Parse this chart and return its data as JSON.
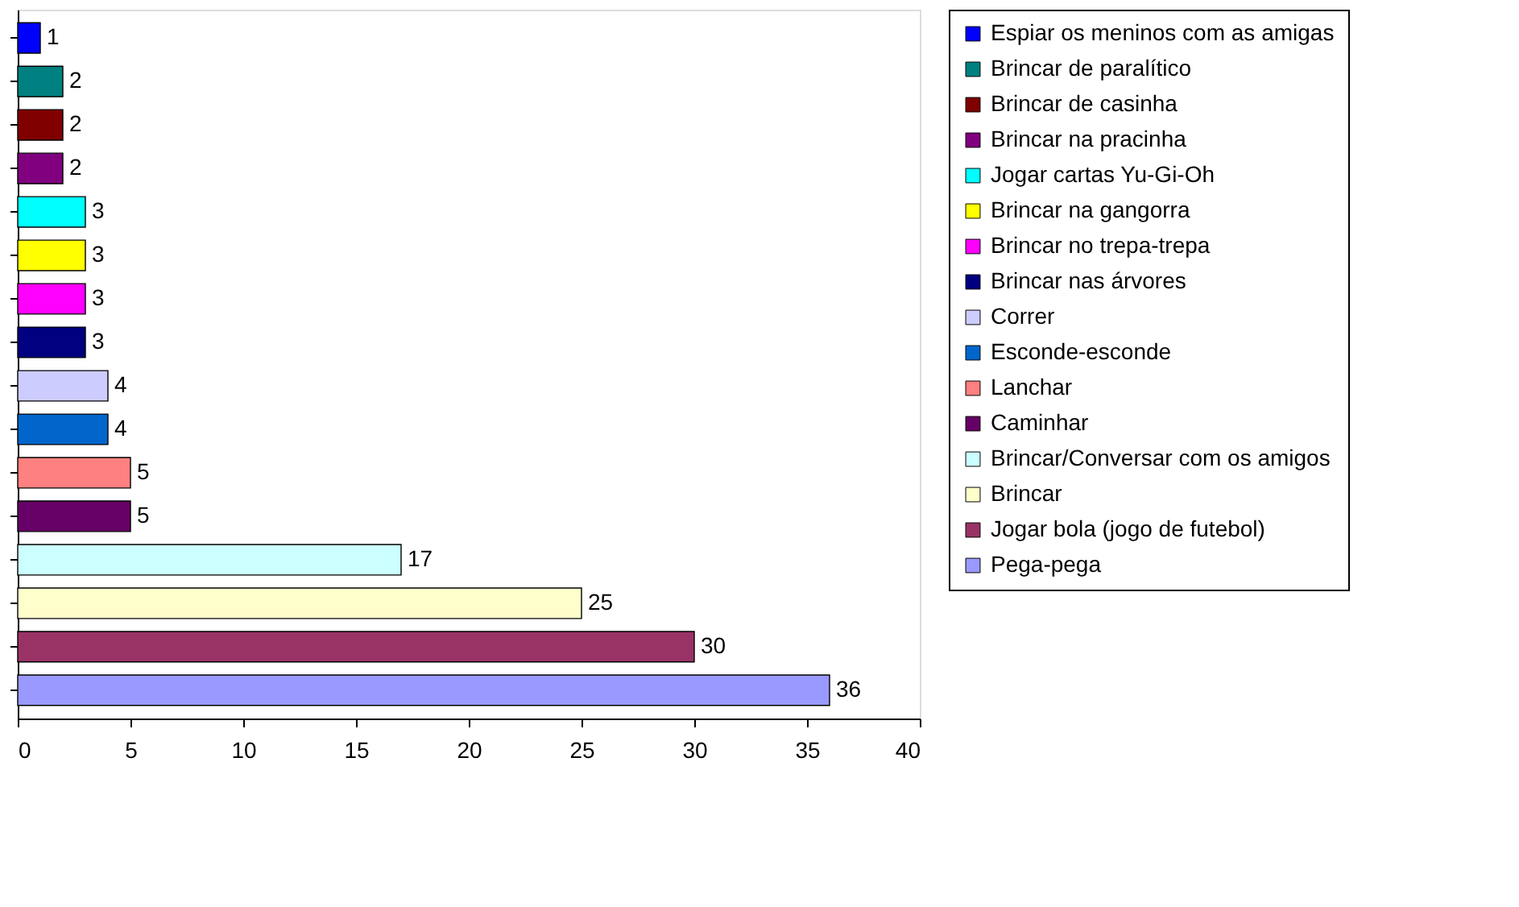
{
  "chart_data": {
    "type": "bar",
    "orientation": "horizontal",
    "categories": [
      null,
      null,
      null,
      null,
      null,
      null,
      null,
      null,
      null,
      null,
      null,
      null,
      null,
      null,
      null,
      null
    ],
    "series": [
      {
        "name": "Espiar os meninos com as amigas",
        "color": "#0000ff",
        "values": [
          1,
          null,
          null,
          null,
          null,
          null,
          null,
          null,
          null,
          null,
          null,
          null,
          null,
          null,
          null,
          null
        ]
      },
      {
        "name": "Brincar de paralítico",
        "color": "#008080",
        "values": [
          null,
          2,
          null,
          null,
          null,
          null,
          null,
          null,
          null,
          null,
          null,
          null,
          null,
          null,
          null,
          null
        ]
      },
      {
        "name": "Brincar de casinha",
        "color": "#800000",
        "values": [
          null,
          null,
          2,
          null,
          null,
          null,
          null,
          null,
          null,
          null,
          null,
          null,
          null,
          null,
          null,
          null
        ]
      },
      {
        "name": "Brincar na pracinha",
        "color": "#800080",
        "values": [
          null,
          null,
          null,
          2,
          null,
          null,
          null,
          null,
          null,
          null,
          null,
          null,
          null,
          null,
          null,
          null
        ]
      },
      {
        "name": "Jogar cartas Yu-Gi-Oh",
        "color": "#00ffff",
        "values": [
          null,
          null,
          null,
          null,
          3,
          null,
          null,
          null,
          null,
          null,
          null,
          null,
          null,
          null,
          null,
          null
        ]
      },
      {
        "name": "Brincar na gangorra",
        "color": "#ffff00",
        "values": [
          null,
          null,
          null,
          null,
          null,
          3,
          null,
          null,
          null,
          null,
          null,
          null,
          null,
          null,
          null,
          null
        ]
      },
      {
        "name": "Brincar no trepa-trepa",
        "color": "#ff00ff",
        "values": [
          null,
          null,
          null,
          null,
          null,
          null,
          3,
          null,
          null,
          null,
          null,
          null,
          null,
          null,
          null,
          null
        ]
      },
      {
        "name": "Brincar nas árvores",
        "color": "#000080",
        "values": [
          null,
          null,
          null,
          null,
          null,
          null,
          null,
          3,
          null,
          null,
          null,
          null,
          null,
          null,
          null,
          null
        ]
      },
      {
        "name": "Correr",
        "color": "#ccccff",
        "values": [
          null,
          null,
          null,
          null,
          null,
          null,
          null,
          null,
          4,
          null,
          null,
          null,
          null,
          null,
          null,
          null
        ]
      },
      {
        "name": "Esconde-esconde",
        "color": "#0066cc",
        "values": [
          null,
          null,
          null,
          null,
          null,
          null,
          null,
          null,
          null,
          4,
          null,
          null,
          null,
          null,
          null,
          null
        ]
      },
      {
        "name": "Lanchar",
        "color": "#ff8080",
        "values": [
          null,
          null,
          null,
          null,
          null,
          null,
          null,
          null,
          null,
          null,
          5,
          null,
          null,
          null,
          null,
          null
        ]
      },
      {
        "name": "Caminhar",
        "color": "#660066",
        "values": [
          null,
          null,
          null,
          null,
          null,
          null,
          null,
          null,
          null,
          null,
          null,
          5,
          null,
          null,
          null,
          null
        ]
      },
      {
        "name": "Brincar/Conversar com os amigos",
        "color": "#ccffff",
        "values": [
          null,
          null,
          null,
          null,
          null,
          null,
          null,
          null,
          null,
          null,
          null,
          null,
          17,
          null,
          null,
          null
        ]
      },
      {
        "name": "Brincar",
        "color": "#ffffcc",
        "values": [
          null,
          null,
          null,
          null,
          null,
          null,
          null,
          null,
          null,
          null,
          null,
          null,
          null,
          25,
          null,
          null
        ]
      },
      {
        "name": "Jogar bola (jogo de futebol)",
        "color": "#993366",
        "values": [
          null,
          null,
          null,
          null,
          null,
          null,
          null,
          null,
          null,
          null,
          null,
          null,
          null,
          null,
          30,
          null
        ]
      },
      {
        "name": "Pega-pega",
        "color": "#9999ff",
        "values": [
          null,
          null,
          null,
          null,
          null,
          null,
          null,
          null,
          null,
          null,
          null,
          null,
          null,
          null,
          null,
          36
        ]
      }
    ],
    "xlim": [
      0,
      40
    ],
    "xticks": [
      0,
      5,
      10,
      15,
      20,
      25,
      30,
      35,
      40
    ],
    "data_labels": true,
    "legend": "right",
    "tick_labels": "x",
    "grid": false
  }
}
